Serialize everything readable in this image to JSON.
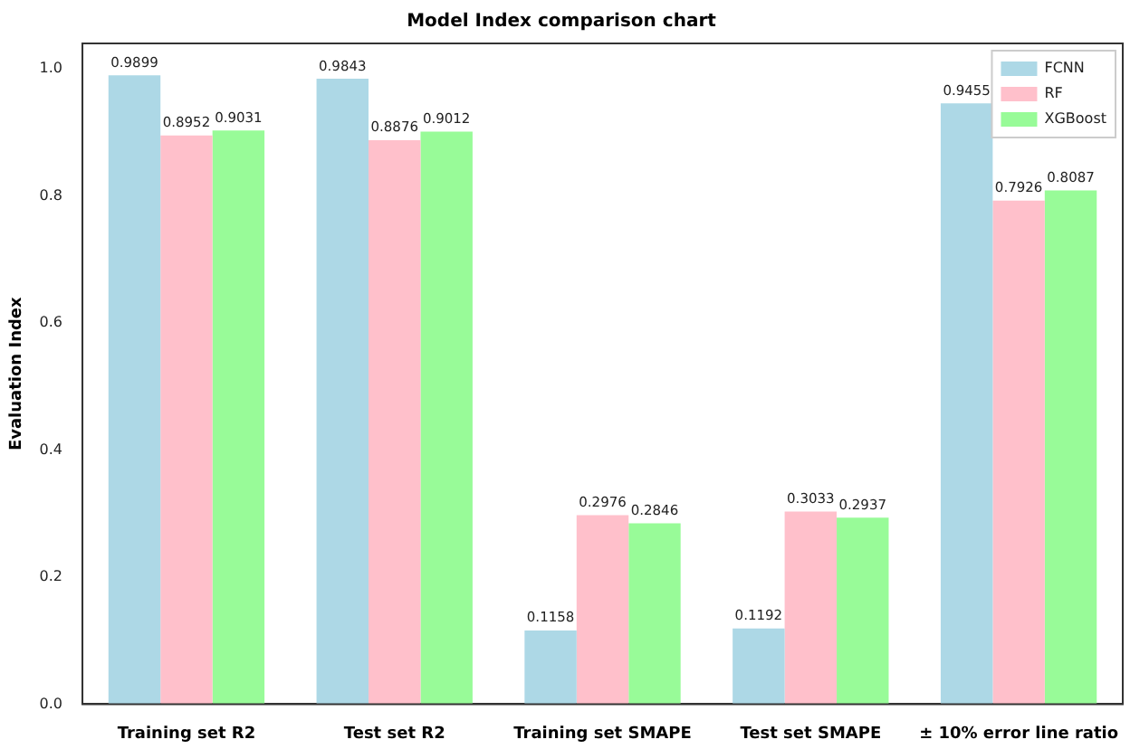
{
  "chart_data": {
    "type": "bar",
    "title": "Model Index comparison chart",
    "ylabel": "Evaluation Index",
    "categories": [
      "Training set R2",
      "Test set R2",
      "Training set SMAPE",
      "Test set SMAPE",
      "± 10% error line ratio"
    ],
    "series": [
      {
        "name": "FCNN",
        "color": "#add8e6",
        "values": [
          0.9899,
          0.9843,
          0.1158,
          0.1192,
          0.9455
        ]
      },
      {
        "name": "RF",
        "color": "#ffc0cb",
        "values": [
          0.8952,
          0.8876,
          0.2976,
          0.3033,
          0.7926
        ]
      },
      {
        "name": "XGBoost",
        "color": "#98fb98",
        "values": [
          0.9031,
          0.9012,
          0.2846,
          0.2937,
          0.8087
        ]
      }
    ],
    "ylim": [
      0,
      1.04
    ],
    "yticks": [
      {
        "value": 0,
        "label": "0.0"
      },
      {
        "value": 0.2,
        "label": "0.2"
      },
      {
        "value": 0.4,
        "label": "0.4"
      },
      {
        "value": 0.6,
        "label": "0.6"
      },
      {
        "value": 0.8,
        "label": "0.8"
      },
      {
        "value": 1,
        "label": "1.0"
      }
    ],
    "grid": false,
    "legend": "top right",
    "data_labels": true
  }
}
